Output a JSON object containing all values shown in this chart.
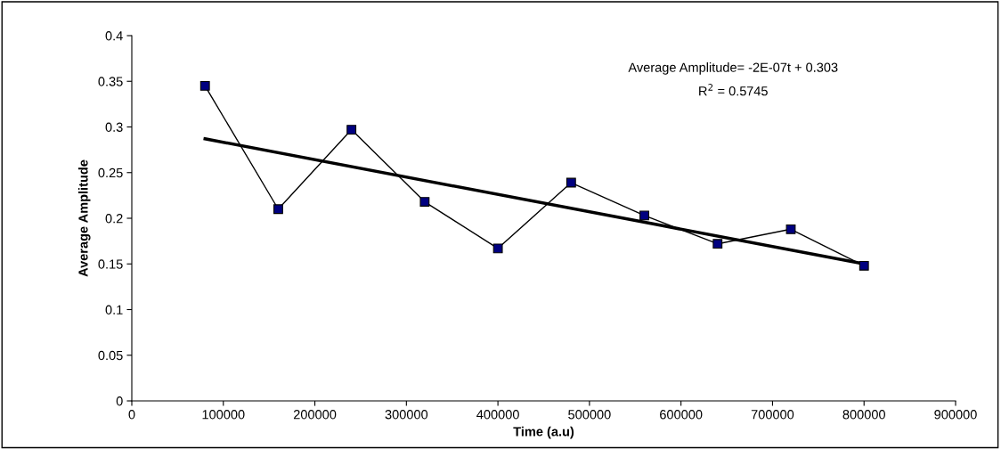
{
  "chart_data": {
    "type": "line",
    "xlabel": "Time (a.u)",
    "ylabel": "Average Amplitude",
    "xlim": [
      0,
      900000
    ],
    "xticks": [
      0,
      100000,
      200000,
      300000,
      400000,
      500000,
      600000,
      700000,
      800000,
      900000
    ],
    "ylim": [
      0,
      0.4
    ],
    "yticks": [
      0,
      0.05,
      0.1,
      0.15,
      0.2,
      0.25,
      0.3,
      0.35,
      0.4
    ],
    "grid": false,
    "legend": false,
    "series": [
      {
        "color": "#000080",
        "marker": "square",
        "x": [
          80000,
          160000,
          240000,
          320000,
          400000,
          480000,
          560000,
          640000,
          720000,
          800000
        ],
        "values": [
          0.345,
          0.21,
          0.297,
          0.218,
          0.167,
          0.239,
          0.203,
          0.172,
          0.188,
          0.148
        ]
      },
      {
        "type": "line",
        "color": "#000000",
        "marker": "none",
        "x": [
          80000,
          800000
        ],
        "values": [
          0.287,
          0.15
        ]
      }
    ],
    "annotations": [
      "Average Amplitude= -2E-07t + 0.303",
      "R$^{2}$ = 0.5745"
    ]
  }
}
